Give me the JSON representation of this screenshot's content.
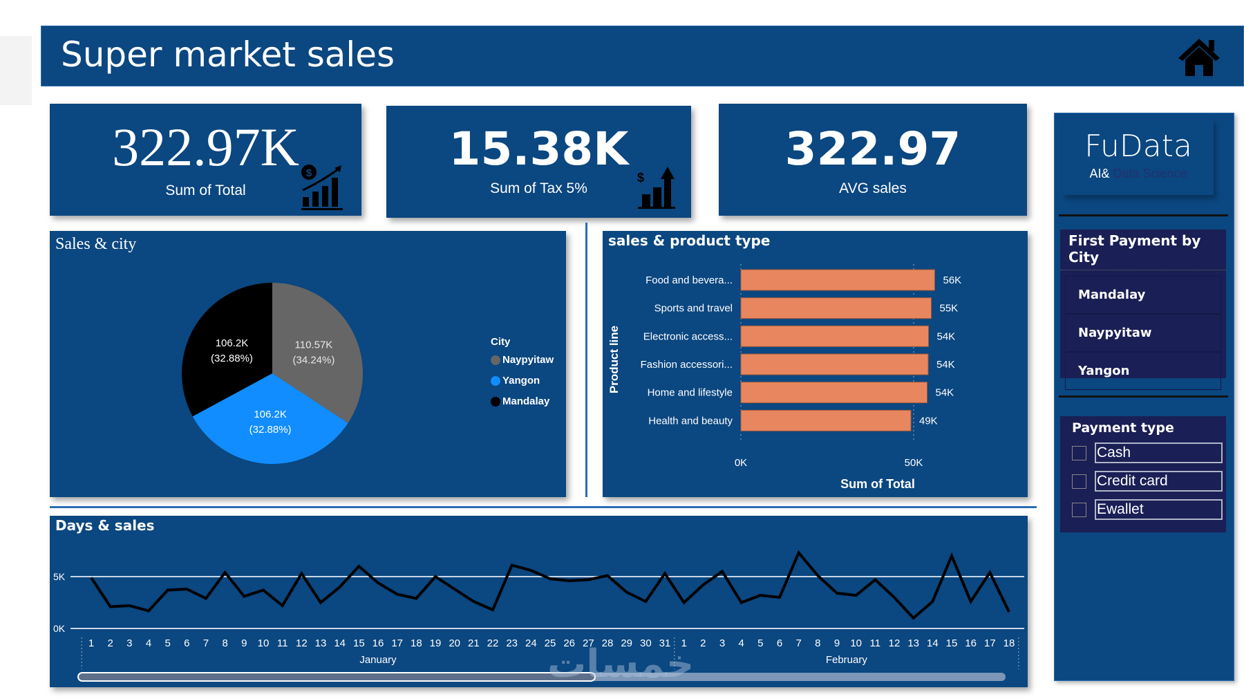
{
  "header": {
    "title": "Super market sales",
    "home_icon": "home-icon"
  },
  "kpis": [
    {
      "value": "322.97K",
      "label": "Sum of Total",
      "icon": "dollar-growth-chart-icon"
    },
    {
      "value": "15.38K",
      "label": "Sum of Tax 5%",
      "icon": "dollar-bar-arrow-icon"
    },
    {
      "value": "322.97",
      "label": "AVG sales"
    }
  ],
  "brand": {
    "name": "FuData",
    "sub_prefix": "AI&",
    "sub_suffix": " Data Science"
  },
  "city_slicer": {
    "title": "First Payment by City",
    "items": [
      "Mandalay",
      "Naypyitaw",
      "Yangon"
    ]
  },
  "payment_slicer": {
    "title": "Payment type",
    "items": [
      {
        "label": "Cash",
        "checked": false
      },
      {
        "label": "Credit card",
        "checked": false
      },
      {
        "label": "Ewallet",
        "checked": false
      }
    ]
  },
  "watermark": "خمسات",
  "colors": {
    "panel": "#0b4780",
    "bar": "#e8875f",
    "naypyitaw": "#666666",
    "yangon": "#118dff",
    "mandalay": "#000000",
    "line": "#000000"
  },
  "chart_data": [
    {
      "type": "pie",
      "title": "Sales & city",
      "legend_title": "City",
      "legend_position": "right",
      "slices": [
        {
          "name": "Naypyitaw",
          "value": 110.57,
          "label": "110.57K",
          "percent": "(34.24%)",
          "color": "#666666"
        },
        {
          "name": "Yangon",
          "value": 106.2,
          "label": "106.2K",
          "percent": "(32.88%)",
          "color": "#118dff"
        },
        {
          "name": "Mandalay",
          "value": 106.2,
          "label": "106.2K",
          "percent": "(32.88%)",
          "color": "#000000"
        }
      ],
      "legend": [
        "Naypyitaw",
        "Yangon",
        "Mandalay"
      ]
    },
    {
      "type": "bar",
      "orientation": "horizontal",
      "title": "sales & product type",
      "xlabel": "Sum of Total",
      "ylabel": "Product line",
      "categories": [
        "Food and bevera...",
        "Sports and travel",
        "Electronic access...",
        "Fashion accessori...",
        "Home and lifestyle",
        "Health and beauty"
      ],
      "values": [
        56.1,
        55.1,
        54.3,
        54.2,
        53.9,
        49.2
      ],
      "data_labels": [
        "56K",
        "55K",
        "54K",
        "54K",
        "54K",
        "49K"
      ],
      "xlim": [
        0,
        60
      ],
      "xticks": [
        {
          "value": 0,
          "label": "0K"
        },
        {
          "value": 50,
          "label": "50K"
        }
      ],
      "grid": true
    },
    {
      "type": "line",
      "title": "Days & sales",
      "ylim": [
        0,
        8
      ],
      "yticks": [
        {
          "value": 0,
          "label": "0K"
        },
        {
          "value": 5,
          "label": "5K"
        }
      ],
      "groups": [
        {
          "label": "January",
          "days": [
            "1",
            "2",
            "3",
            "4",
            "5",
            "6",
            "7",
            "8",
            "9",
            "10",
            "11",
            "12",
            "13",
            "14",
            "15",
            "16",
            "17",
            "18",
            "19",
            "20",
            "21",
            "22",
            "23",
            "24",
            "25",
            "26",
            "27",
            "28",
            "29",
            "30",
            "31"
          ]
        },
        {
          "label": "February",
          "days": [
            "1",
            "2",
            "3",
            "4",
            "5",
            "6",
            "7",
            "8",
            "9",
            "10",
            "11",
            "12",
            "13",
            "14",
            "15",
            "16",
            "17",
            "18"
          ]
        }
      ],
      "values": [
        4.9,
        2.1,
        2.2,
        1.7,
        3.7,
        3.8,
        2.9,
        5.4,
        3.1,
        3.7,
        2.2,
        5.3,
        2.5,
        4.0,
        6.0,
        4.4,
        3.3,
        2.9,
        5.0,
        3.8,
        2.6,
        1.8,
        6.1,
        5.6,
        4.8,
        4.6,
        4.7,
        5.1,
        3.5,
        2.6,
        5.3,
        2.5,
        4.2,
        5.5,
        2.5,
        3.2,
        3.0,
        7.3,
        5.1,
        3.4,
        3.2,
        4.7,
        3.0,
        1.0,
        2.6,
        7.0,
        2.6,
        5.4,
        1.6
      ],
      "scrollbar_position": 0.55
    }
  ]
}
